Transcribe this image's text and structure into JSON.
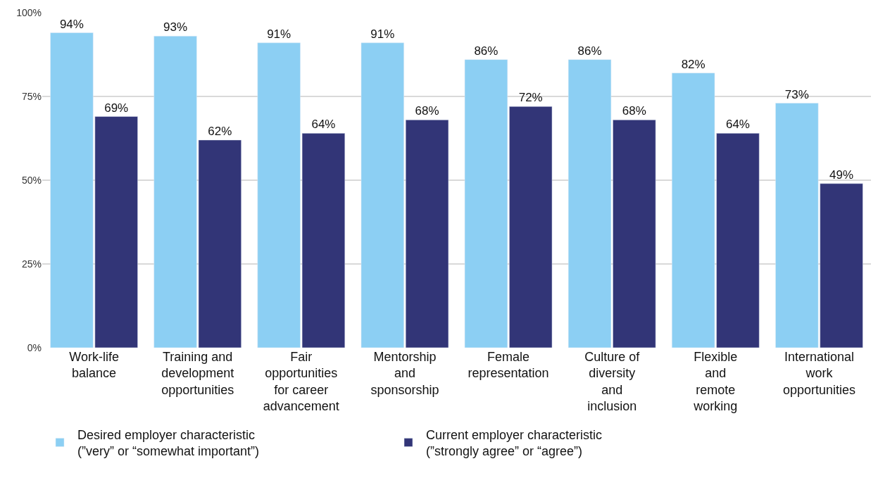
{
  "chart_data": {
    "type": "bar",
    "categories": [
      "Work-life\nbalance",
      "Training and\ndevelopment\nopportunities",
      "Fair\nopportunities\nfor career\nadvancement",
      "Mentorship\nand\nsponsorship",
      "Female\nrepresentation",
      "Culture of\ndiversity\nand\ninclusion",
      "Flexible\nand\nremote\nworking",
      "International\nwork\nopportunities"
    ],
    "series": [
      {
        "name": "Desired employer characteristic\n(”very” or “somewhat important”)",
        "color": "#8ccff3",
        "values": [
          94,
          93,
          91,
          91,
          86,
          86,
          82,
          73
        ],
        "value_labels": [
          "94%",
          "93%",
          "91%",
          "91%",
          "86%",
          "86%",
          "82%",
          "73%"
        ]
      },
      {
        "name": "Current employer characteristic\n(”strongly agree” or “agree”)",
        "color": "#323577",
        "values": [
          69,
          62,
          64,
          68,
          72,
          68,
          64,
          49
        ],
        "value_labels": [
          "69%",
          "62%",
          "64%",
          "68%",
          "72%",
          "68%",
          "64%",
          "49%"
        ]
      }
    ],
    "ylim": [
      0,
      100
    ],
    "yticks": [
      {
        "value": 0,
        "label": "0%"
      },
      {
        "value": 25,
        "label": "25%"
      },
      {
        "value": 50,
        "label": "50%"
      },
      {
        "value": 75,
        "label": "75%"
      },
      {
        "value": 100,
        "label": "100%"
      }
    ],
    "grid": "y",
    "legend": "bottom left"
  }
}
